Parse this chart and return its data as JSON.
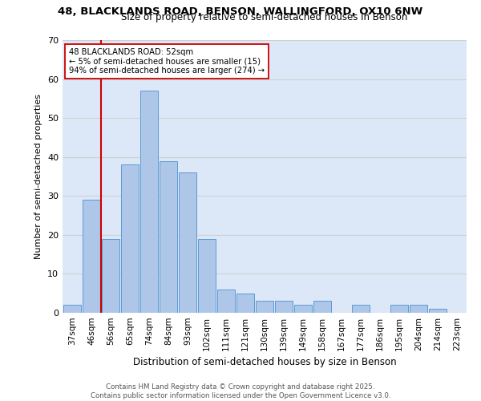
{
  "title_line1": "48, BLACKLANDS ROAD, BENSON, WALLINGFORD, OX10 6NW",
  "title_line2": "Size of property relative to semi-detached houses in Benson",
  "xlabel": "Distribution of semi-detached houses by size in Benson",
  "ylabel": "Number of semi-detached properties",
  "categories": [
    "37sqm",
    "46sqm",
    "56sqm",
    "65sqm",
    "74sqm",
    "84sqm",
    "93sqm",
    "102sqm",
    "111sqm",
    "121sqm",
    "130sqm",
    "139sqm",
    "149sqm",
    "158sqm",
    "167sqm",
    "177sqm",
    "186sqm",
    "195sqm",
    "204sqm",
    "214sqm",
    "223sqm"
  ],
  "values": [
    2,
    29,
    19,
    38,
    57,
    39,
    36,
    19,
    6,
    5,
    3,
    3,
    2,
    3,
    0,
    2,
    0,
    2,
    2,
    1,
    0
  ],
  "bar_color": "#aec6e8",
  "bar_edge_color": "#5b9bd5",
  "grid_color": "#d0d0d0",
  "bg_color": "#dce8f8",
  "property_label": "48 BLACKLANDS ROAD: 52sqm",
  "pct_smaller": 5,
  "pct_smaller_count": 15,
  "pct_larger": 94,
  "pct_larger_count": 274,
  "red_line_color": "#cc0000",
  "annotation_box_edge": "#cc0000",
  "footer_line1": "Contains HM Land Registry data © Crown copyright and database right 2025.",
  "footer_line2": "Contains public sector information licensed under the Open Government Licence v3.0.",
  "ylim": [
    0,
    70
  ],
  "yticks": [
    0,
    10,
    20,
    30,
    40,
    50,
    60,
    70
  ],
  "red_line_x": 1.5
}
